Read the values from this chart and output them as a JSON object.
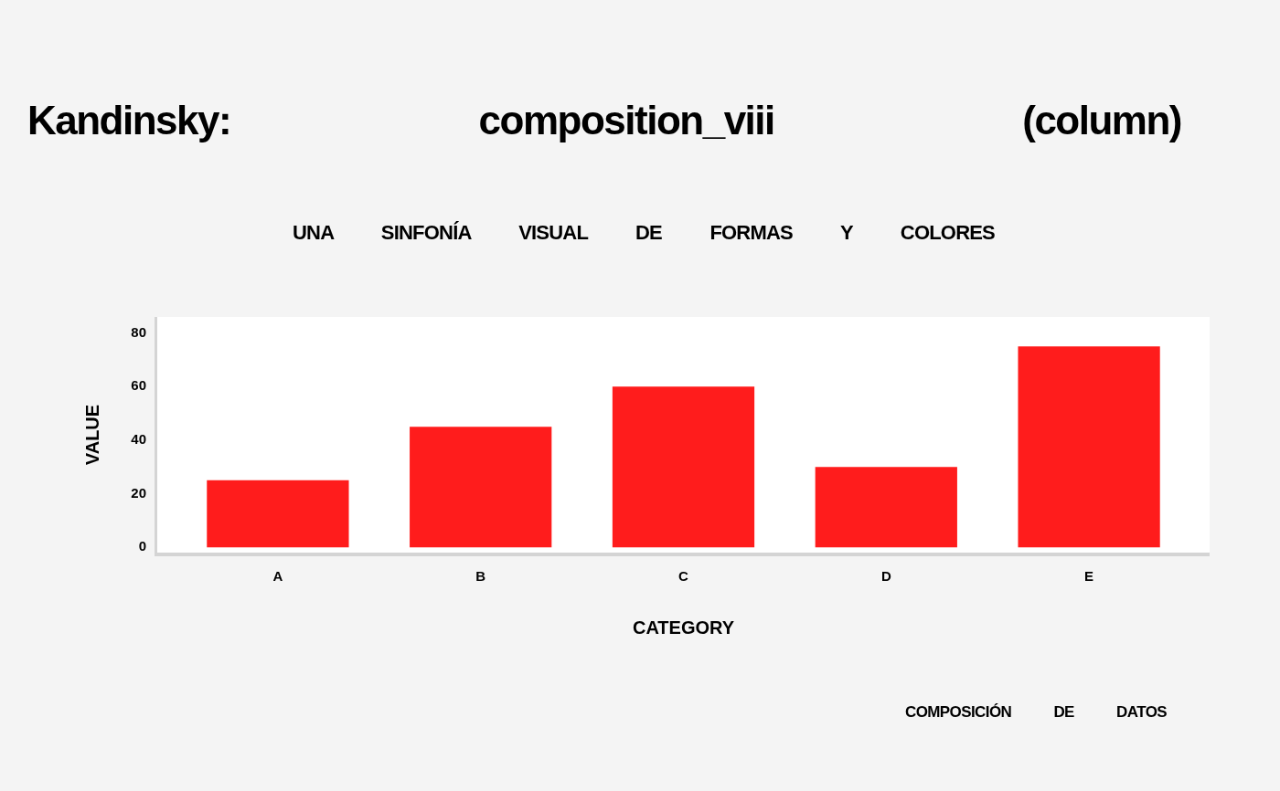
{
  "chart_data": {
    "type": "bar",
    "title": "Kandinsky: composition_viii (column)",
    "subtitle": "UNA SINFONÍA VISUAL DE FORMAS Y COLORES",
    "xlabel": "CATEGORY",
    "ylabel": "VALUE",
    "annotations": [
      "COMPOSICIÓN DE DATOS"
    ],
    "categories": [
      "A",
      "B",
      "C",
      "D",
      "E"
    ],
    "values": [
      25,
      45,
      60,
      30,
      75
    ],
    "color": "#ff1c1c",
    "ylim": [
      -2,
      86
    ],
    "yticks": [
      0,
      20,
      40,
      60,
      80
    ],
    "grid": false,
    "legend": false
  }
}
